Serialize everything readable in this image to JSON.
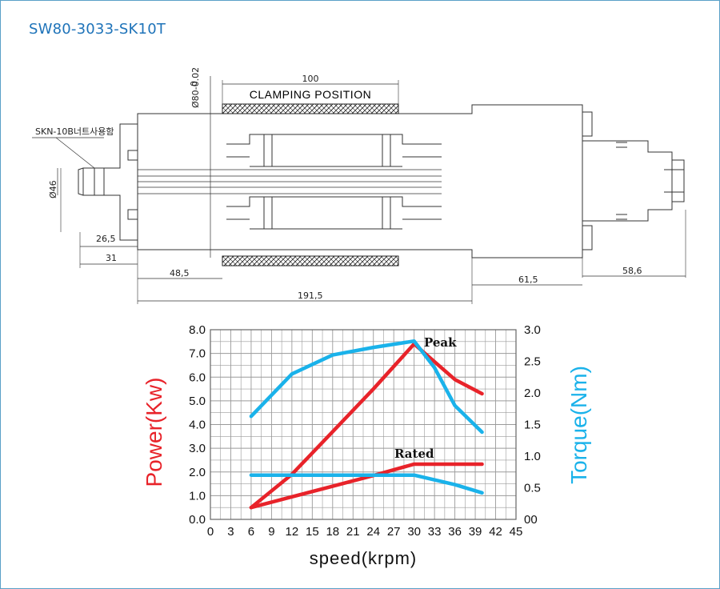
{
  "model_title": "SW80-3033-SK10T",
  "drawing": {
    "label_clamping": "CLAMPING POSITION",
    "label_nut": "SKN-10B너트사용함",
    "dim_100": "100",
    "dim_dia80": "Ø80-0.02",
    "dim_dia80_zero": "0",
    "dim_dia46": "Ø46",
    "dim_26_5": "26,5",
    "dim_31": "31",
    "dim_48_5": "48,5",
    "dim_191_5": "191,5",
    "dim_61_5": "61,5",
    "dim_58_6": "58,6"
  },
  "colors": {
    "power": "#e8232a",
    "torque": "#1ab2ea",
    "grid": "#9a9a9a"
  },
  "chart_data": {
    "type": "line",
    "xlabel": "speed(krpm)",
    "ylabel_left": "Power(Kw)",
    "ylabel_right": "Torque(Nm)",
    "xlim": [
      0,
      45
    ],
    "ylim_left": [
      0,
      8
    ],
    "ylim_right": [
      0,
      3
    ],
    "x_ticks": [
      "0",
      "3",
      "6",
      "9",
      "12",
      "15",
      "18",
      "21",
      "24",
      "27",
      "30",
      "33",
      "36",
      "39",
      "42",
      "45"
    ],
    "y_left_ticks": [
      "0.0",
      "1.0",
      "2.0",
      "3.0",
      "4.0",
      "5.0",
      "6.0",
      "7.0",
      "8.0"
    ],
    "y_right_ticks": [
      "00",
      "0.5",
      "1.0",
      "1.5",
      "2.0",
      "2.5",
      "3.0"
    ],
    "grid": true,
    "annotations": [
      "Peak",
      "Rated"
    ],
    "series": [
      {
        "axis": "left",
        "color": "power",
        "x": [
          6,
          12,
          18,
          24,
          30,
          36,
          40
        ],
        "y": [
          0.5,
          1.9,
          3.7,
          5.5,
          7.4,
          5.9,
          5.3
        ]
      },
      {
        "axis": "left",
        "color": "power",
        "x": [
          6,
          12,
          18,
          24,
          30,
          36,
          40
        ],
        "y": [
          0.5,
          0.95,
          1.4,
          1.85,
          2.33,
          2.33,
          2.33
        ]
      },
      {
        "axis": "right",
        "color": "torque",
        "x": [
          6,
          12,
          18,
          24,
          30,
          33,
          36,
          40
        ],
        "y": [
          1.63,
          2.3,
          2.6,
          2.72,
          2.82,
          2.4,
          1.8,
          1.38
        ]
      },
      {
        "axis": "right",
        "color": "torque",
        "x": [
          6,
          12,
          18,
          24,
          30,
          36,
          40
        ],
        "y": [
          0.7,
          0.7,
          0.7,
          0.7,
          0.7,
          0.55,
          0.42
        ]
      }
    ]
  }
}
